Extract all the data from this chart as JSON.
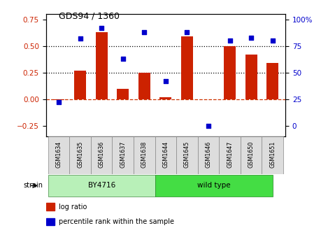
{
  "title": "GDS94 / 1360",
  "samples": [
    "GSM1634",
    "GSM1635",
    "GSM1636",
    "GSM1637",
    "GSM1638",
    "GSM1644",
    "GSM1645",
    "GSM1646",
    "GSM1647",
    "GSM1650",
    "GSM1651"
  ],
  "log_ratio": [
    -0.01,
    0.27,
    0.63,
    0.1,
    0.25,
    0.02,
    0.59,
    0.0,
    0.5,
    0.42,
    0.34
  ],
  "percentile_rank": [
    22,
    82,
    92,
    63,
    88,
    42,
    88,
    0,
    80,
    83,
    80
  ],
  "bar_color": "#cc2200",
  "dot_color": "#0000cc",
  "ylim_left": [
    -0.35,
    0.8
  ],
  "ylim_right": [
    -8.75,
    125
  ],
  "yticks_left": [
    -0.25,
    0.0,
    0.25,
    0.5,
    0.75
  ],
  "yticks_right": [
    0,
    25,
    50,
    75,
    100
  ],
  "ytick_right_labels": [
    "0",
    "25",
    "50",
    "75",
    "100%"
  ],
  "hlines": [
    0.0,
    0.25,
    0.5
  ],
  "hline_styles": [
    "--",
    ":",
    ":"
  ],
  "hline_colors": [
    "#cc3300",
    "#000000",
    "#000000"
  ],
  "legend_items": [
    "log ratio",
    "percentile rank within the sample"
  ],
  "legend_colors": [
    "#cc2200",
    "#0000cc"
  ],
  "strain_label": "strain",
  "bar_width": 0.55,
  "by4716_color": "#b8f0b8",
  "wildtype_color": "#44dd44"
}
